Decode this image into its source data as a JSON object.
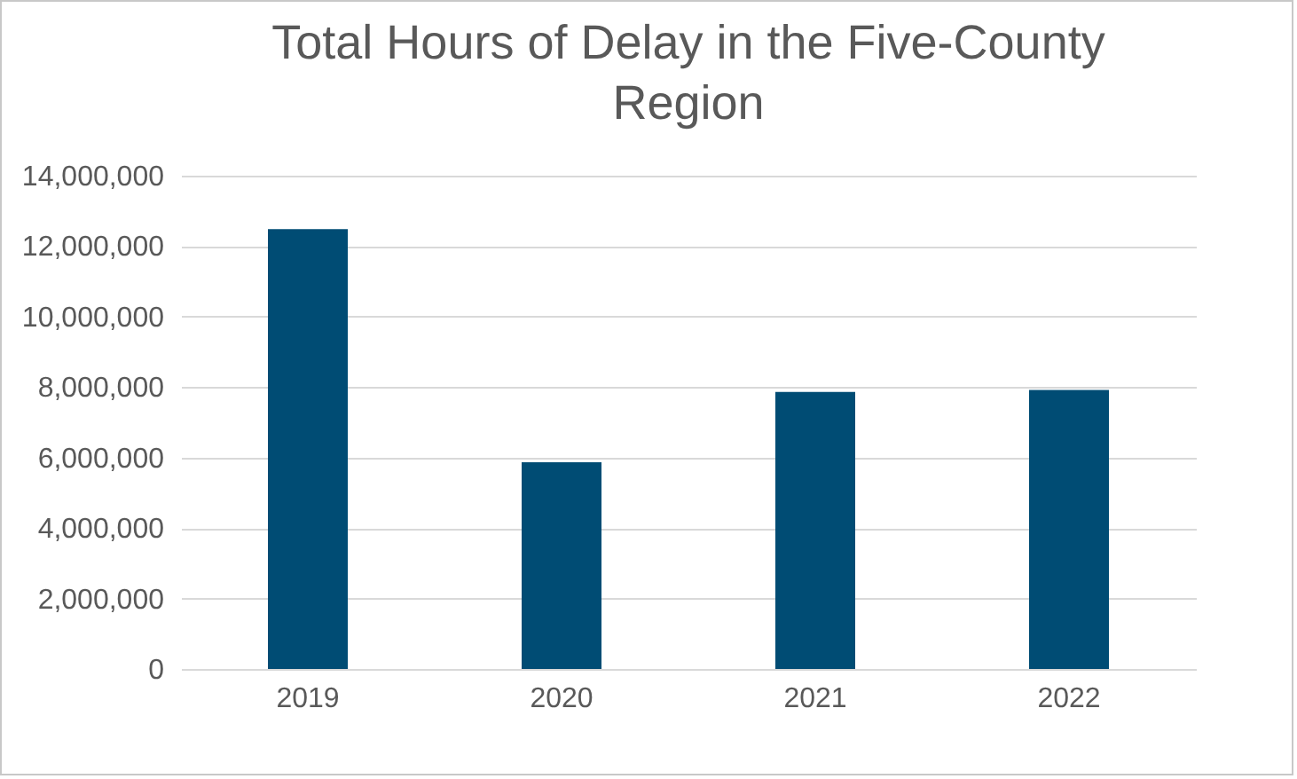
{
  "chart_data": {
    "type": "bar",
    "title": [
      "Total Hours of Delay in the Five-County",
      "Region"
    ],
    "categories": [
      "2019",
      "2020",
      "2021",
      "2022"
    ],
    "values": [
      12480000,
      5870000,
      7860000,
      7920000
    ],
    "color": "#004c74",
    "ylim": [
      0,
      14000000
    ],
    "yticks": [
      0,
      {
        "value": 2000000,
        "label": "2,000,000"
      },
      {
        "value": 4000000,
        "label": "4,000,000"
      },
      {
        "value": 6000000,
        "label": "6,000,000"
      },
      {
        "value": 8000000,
        "label": "8,000,000"
      },
      {
        "value": 10000000,
        "label": "10,000,000"
      },
      {
        "value": 12000000,
        "label": "12,000,000"
      },
      {
        "value": 14000000,
        "label": "14,000,000"
      }
    ],
    "grid": "y"
  }
}
